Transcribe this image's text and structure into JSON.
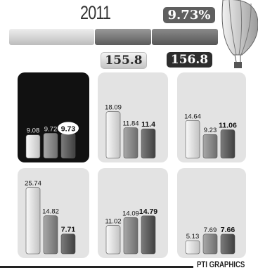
{
  "header": {
    "year": "2011",
    "percent": "9.73%",
    "value_left": "155.8",
    "value_right": "156.8"
  },
  "credit": "PTI GRAPHICS",
  "chart_data": [
    {
      "type": "bar",
      "highlighted": true,
      "values": [
        9.08,
        9.72,
        9.73
      ],
      "labels": [
        "9.08",
        "9.72",
        "9.73"
      ],
      "ylim": [
        0,
        30
      ]
    },
    {
      "type": "bar",
      "highlighted": false,
      "values": [
        18.09,
        11.84,
        11.4
      ],
      "labels": [
        "18.09",
        "11.84",
        "11.4"
      ],
      "ylim": [
        0,
        30
      ]
    },
    {
      "type": "bar",
      "highlighted": false,
      "values": [
        14.64,
        9.23,
        11.06
      ],
      "labels": [
        "14.64",
        "9.23",
        "11.06"
      ],
      "ylim": [
        0,
        30
      ]
    },
    {
      "type": "bar",
      "highlighted": false,
      "values": [
        25.74,
        14.82,
        7.71
      ],
      "labels": [
        "25.74",
        "14.82",
        "7.71"
      ],
      "ylim": [
        0,
        30
      ]
    },
    {
      "type": "bar",
      "highlighted": false,
      "values": [
        11.02,
        14.09,
        14.79
      ],
      "labels": [
        "11.02",
        "14.09",
        "14.79"
      ],
      "ylim": [
        0,
        30
      ]
    },
    {
      "type": "bar",
      "highlighted": false,
      "values": [
        5.13,
        7.69,
        7.66
      ],
      "labels": [
        "5.13",
        "7.69",
        "7.66"
      ],
      "ylim": [
        0,
        30
      ]
    }
  ]
}
